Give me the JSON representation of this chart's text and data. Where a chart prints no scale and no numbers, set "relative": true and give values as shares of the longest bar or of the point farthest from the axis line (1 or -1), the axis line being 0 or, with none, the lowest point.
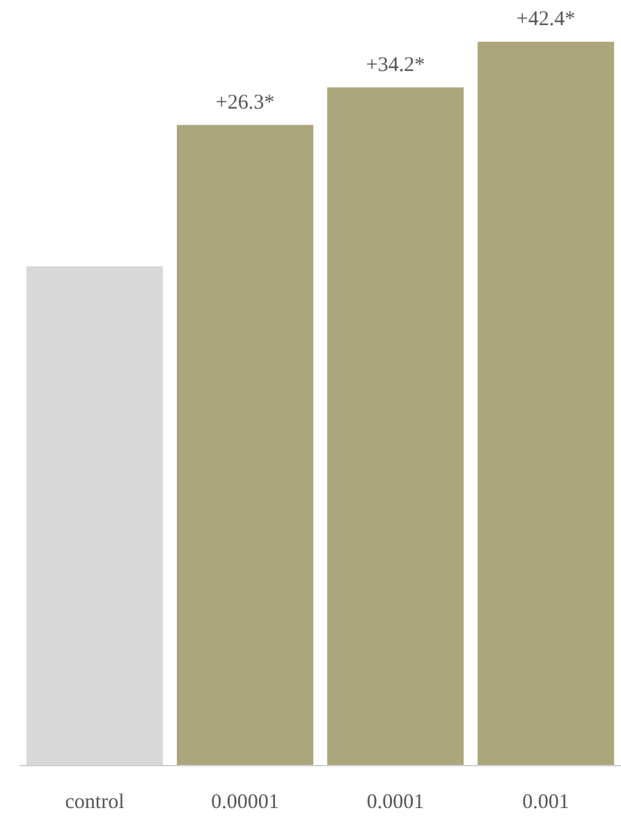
{
  "chart_data": {
    "type": "bar",
    "relative": true,
    "categories": [
      "control",
      "0.00001",
      "0.0001",
      "0.001"
    ],
    "values": [
      0.69,
      0.885,
      0.937,
      1
    ],
    "colors": [
      "#d8d8d8",
      "#aca67c",
      "#aca67c",
      "#aca67c"
    ],
    "annotations": [
      {
        "text": "+26.3*",
        "x": "0.00001",
        "y": 0.885
      },
      {
        "text": "+34.2*",
        "x": "0.0001",
        "y": 0.937
      },
      {
        "text": "+42.4*",
        "x": "0.001",
        "y": 1
      }
    ]
  }
}
